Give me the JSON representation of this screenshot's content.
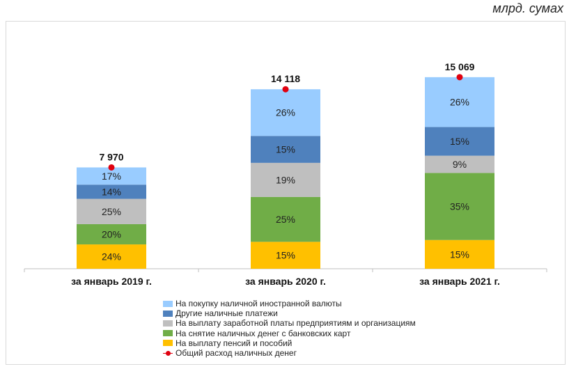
{
  "unit_label": "млрд. сумах",
  "chart_data": {
    "type": "bar",
    "stacked": true,
    "categories": [
      "за январь 2019 г.",
      "за январь 2020 г.",
      "за январь 2021 г."
    ],
    "series": [
      {
        "name": "На выплату пенсий и пособий",
        "color": "#ffc000",
        "values": [
          24,
          15,
          15
        ],
        "labels": [
          "24%",
          "15%",
          "15%"
        ]
      },
      {
        "name": "На снятие наличных денег с банковских карт",
        "color": "#70ad47",
        "values": [
          20,
          25,
          35
        ],
        "labels": [
          "20%",
          "25%",
          "35%"
        ]
      },
      {
        "name": "На выплату заработной платы предприятиям и организациям",
        "color": "#bfbfbf",
        "values": [
          25,
          19,
          9
        ],
        "labels": [
          "25%",
          "19%",
          "9%"
        ]
      },
      {
        "name": "Другие наличные платежи",
        "color": "#4f81bd",
        "values": [
          14,
          15,
          15
        ],
        "labels": [
          "14%",
          "15%",
          "15%"
        ]
      },
      {
        "name": "На покупку наличной иностранной валюты",
        "color": "#99ccff",
        "values": [
          17,
          26,
          26
        ],
        "labels": [
          "17%",
          "26%",
          "26%"
        ]
      }
    ],
    "totals": {
      "name": "Общий расход наличных денег",
      "color": "#e0000f",
      "values": [
        7970,
        14118,
        15069
      ],
      "labels": [
        "7 970",
        "14 118",
        "15 069"
      ]
    },
    "ylim": [
      0,
      16000
    ]
  },
  "legend": [
    {
      "name": "На покупку наличной иностранной валюты",
      "color": "#99ccff",
      "kind": "box"
    },
    {
      "name": "Другие наличные платежи",
      "color": "#4f81bd",
      "kind": "box"
    },
    {
      "name": "На выплату заработной платы предприятиям и организациям",
      "color": "#bfbfbf",
      "kind": "box"
    },
    {
      "name": "На снятие наличных денег с банковских карт",
      "color": "#70ad47",
      "kind": "box"
    },
    {
      "name": "На выплату пенсий и пособий",
      "color": "#ffc000",
      "kind": "box"
    },
    {
      "name": "Общий расход наличных денег",
      "color": "#e0000f",
      "kind": "line"
    }
  ]
}
